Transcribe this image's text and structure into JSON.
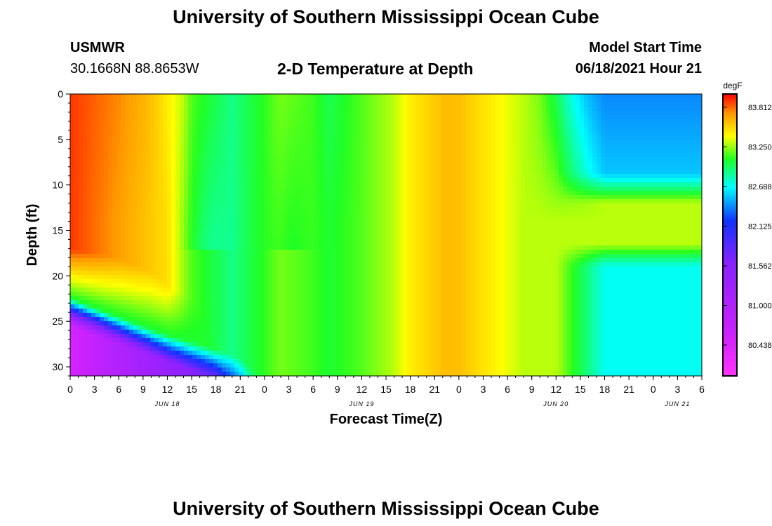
{
  "header": {
    "title_top": "University of Southern Mississippi Ocean Cube",
    "station": "USMWR",
    "coords": "30.1668N  88.8653W",
    "plot_title": "2-D Temperature at Depth",
    "model_label": "Model Start Time",
    "model_time": "06/18/2021 Hour 21",
    "title_bottom": "University of Southern Mississippi Ocean Cube"
  },
  "chart_data": {
    "type": "heatmap",
    "title": "2-D Temperature at Depth",
    "xlabel": "Forecast Time(Z)",
    "ylabel": "Depth (ft)",
    "x_hours_range": [
      0,
      78
    ],
    "y_range": [
      0,
      31
    ],
    "y_ticks": [
      "0",
      "5",
      "10",
      "15",
      "20",
      "25",
      "30"
    ],
    "x_ticks": [
      "0",
      "3",
      "6",
      "9",
      "12",
      "15",
      "18",
      "21",
      "0",
      "3",
      "6",
      "9",
      "12",
      "15",
      "18",
      "21",
      "0",
      "3",
      "6",
      "9",
      "12",
      "15",
      "18",
      "21",
      "0",
      "3",
      "6"
    ],
    "date_labels": [
      {
        "text": "JUN 18",
        "hour": 12
      },
      {
        "text": "JUN 19",
        "hour": 36
      },
      {
        "text": "JUN 20",
        "hour": 60
      },
      {
        "text": "JUN 21",
        "hour": 75
      }
    ],
    "colorbar": {
      "unit": "degF",
      "min": 80.0,
      "max": 84.0,
      "labels": [
        "83.812",
        "83.250",
        "82.688",
        "82.125",
        "81.562",
        "81.000",
        "80.438"
      ],
      "label_values": [
        83.812,
        83.25,
        82.688,
        82.125,
        81.562,
        81.0,
        80.438
      ]
    },
    "surface_profile": {
      "hours": [
        0,
        6,
        10,
        12,
        14,
        15,
        18,
        20,
        22,
        24,
        26,
        30,
        32,
        36,
        40,
        42,
        46,
        48,
        52,
        56,
        58,
        60,
        64,
        70,
        78
      ],
      "degF": [
        83.9,
        83.75,
        83.6,
        83.45,
        83.3,
        83.15,
        83.0,
        82.9,
        83.0,
        83.1,
        83.2,
        83.12,
        83.0,
        83.15,
        83.3,
        83.45,
        83.6,
        83.6,
        83.45,
        83.3,
        83.2,
        83.0,
        82.75,
        82.65,
        82.6
      ]
    },
    "mid_layer_profile": {
      "hours": [
        0,
        12,
        14,
        15,
        18,
        20,
        22,
        24,
        26,
        30,
        32,
        36,
        40,
        42,
        46,
        48,
        52,
        56,
        60,
        64,
        70,
        78
      ],
      "degF": [
        83.9,
        83.5,
        83.25,
        83.15,
        83.0,
        82.9,
        83.0,
        83.1,
        83.2,
        83.12,
        83.05,
        83.15,
        83.3,
        83.45,
        83.6,
        83.6,
        83.45,
        83.3,
        83.3,
        83.3,
        83.3,
        83.3
      ]
    },
    "bottom_profile": {
      "hours": [
        0,
        6,
        12,
        18,
        21,
        23,
        24,
        28,
        32,
        36,
        40,
        42,
        46,
        48,
        52,
        56,
        60,
        64,
        70,
        78
      ],
      "degF": [
        80.5,
        81.0,
        81.4,
        81.8,
        82.3,
        82.8,
        83.0,
        83.15,
        83.1,
        83.15,
        83.3,
        83.45,
        83.6,
        83.6,
        83.45,
        83.3,
        83.1,
        82.85,
        82.75,
        82.7
      ]
    },
    "thermocline_depth_ft": {
      "hours": [
        0,
        6,
        10,
        12,
        14,
        15,
        16,
        20
      ],
      "depth": [
        17,
        18,
        19.5,
        21,
        22,
        22.5,
        24,
        31
      ]
    },
    "bottom_cold_front_depth_ft": {
      "hours": [
        0,
        6,
        12,
        18,
        21,
        23,
        24
      ],
      "depth": [
        22.5,
        24.5,
        26.5,
        28,
        29,
        30.5,
        31
      ]
    }
  }
}
